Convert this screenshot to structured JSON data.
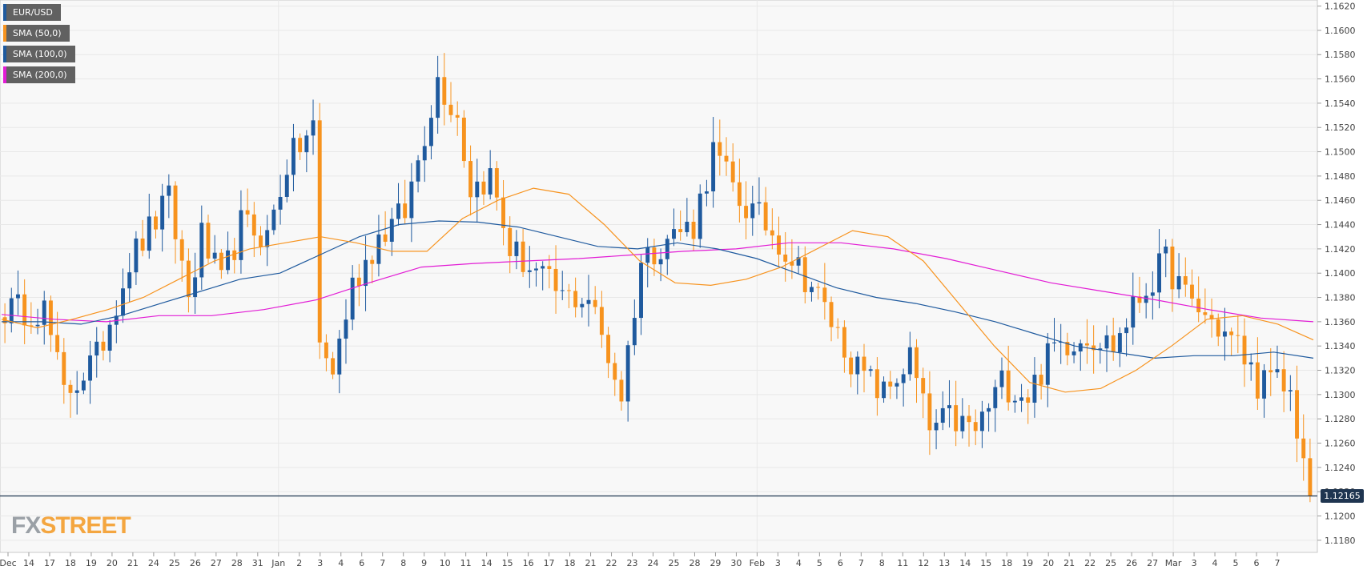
{
  "legend": [
    {
      "label": "EUR/USD",
      "color": "#1f5a9e"
    },
    {
      "label": "SMA (50,0)",
      "color": "#f7931e"
    },
    {
      "label": "SMA (100,0)",
      "color": "#1f5a9e"
    },
    {
      "label": "SMA (200,0)",
      "color": "#e21cd5"
    }
  ],
  "brand": {
    "fx": "FX",
    "street": "STREET"
  },
  "current_price": "1.12165",
  "colors": {
    "up": "#1f5a9e",
    "down": "#f7931e",
    "sma50": "#f7931e",
    "sma100": "#1f5a9e",
    "sma200": "#e21cd5",
    "grid": "#e8e8e8",
    "axis_text": "#444444",
    "price_line": "#1f3550"
  },
  "chart_data": {
    "type": "line",
    "instrument": "EUR/USD",
    "ylim": [
      1.117,
      1.1625
    ],
    "y_ticks": [
      "1.1180",
      "1.1200",
      "1.1220",
      "1.1240",
      "1.1260",
      "1.1280",
      "1.1300",
      "1.1320",
      "1.1340",
      "1.1360",
      "1.1380",
      "1.1400",
      "1.1420",
      "1.1440",
      "1.1460",
      "1.1480",
      "1.1500",
      "1.1520",
      "1.1540",
      "1.1560",
      "1.1580",
      "1.1600",
      "1.1620"
    ],
    "x_ticks": [
      "Dec",
      "14",
      "17",
      "18",
      "19",
      "20",
      "21",
      "24",
      "25",
      "26",
      "27",
      "28",
      "31",
      "Jan",
      "2",
      "3",
      "4",
      "6",
      "7",
      "8",
      "9",
      "10",
      "11",
      "14",
      "15",
      "16",
      "17",
      "18",
      "21",
      "22",
      "23",
      "24",
      "25",
      "28",
      "29",
      "30",
      "Feb",
      "3",
      "4",
      "5",
      "6",
      "7",
      "8",
      "11",
      "12",
      "13",
      "14",
      "15",
      "18",
      "19",
      "20",
      "21",
      "22",
      "25",
      "26",
      "27",
      "Mar",
      "3",
      "4",
      "5",
      "6",
      "7"
    ],
    "grid": "on",
    "legend_position": "top-left",
    "price_line": 1.12165,
    "sma50_anchors": [
      1.1362,
      1.1355,
      1.1362,
      1.137,
      1.138,
      1.1395,
      1.141,
      1.142,
      1.1425,
      1.143,
      1.1425,
      1.1418,
      1.1418,
      1.1445,
      1.146,
      1.147,
      1.1465,
      1.144,
      1.141,
      1.1392,
      1.139,
      1.1395,
      1.1405,
      1.142,
      1.1435,
      1.143,
      1.141,
      1.1375,
      1.134,
      1.131,
      1.1302,
      1.1305,
      1.132,
      1.134,
      1.1362,
      1.1365,
      1.1358,
      1.1345
    ],
    "sma100_anchors": [
      1.136,
      1.136,
      1.1358,
      1.1365,
      1.1375,
      1.1385,
      1.1395,
      1.14,
      1.1415,
      1.143,
      1.144,
      1.1443,
      1.1442,
      1.1438,
      1.143,
      1.1422,
      1.142,
      1.1425,
      1.142,
      1.1412,
      1.14,
      1.1388,
      1.138,
      1.1375,
      1.1368,
      1.136,
      1.135,
      1.134,
      1.1335,
      1.133,
      1.1332,
      1.1332,
      1.1335,
      1.133
    ],
    "sma200_anchors": [
      1.1366,
      1.1362,
      1.136,
      1.1365,
      1.1365,
      1.137,
      1.1378,
      1.1392,
      1.1405,
      1.1408,
      1.141,
      1.1412,
      1.1415,
      1.1418,
      1.142,
      1.1425,
      1.1425,
      1.142,
      1.1412,
      1.1402,
      1.1392,
      1.1385,
      1.1378,
      1.137,
      1.1363,
      1.136
    ]
  }
}
